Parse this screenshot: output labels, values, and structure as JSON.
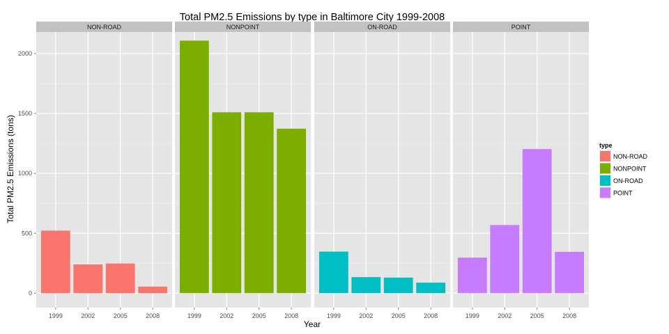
{
  "chart_data": {
    "type": "bar",
    "title": "Total PM2.5 Emissions by type in Baltimore City 1999-2008",
    "xlabel": "Year",
    "ylabel": "Total PM2.5 Emissions (tons)",
    "ylim": [
      -120,
      2180
    ],
    "yticks": [
      0,
      500,
      1000,
      1500,
      2000
    ],
    "categories": [
      "1999",
      "2002",
      "2005",
      "2008"
    ],
    "grid": true,
    "legend": {
      "title": "type",
      "position": "right",
      "entries": [
        "NON-ROAD",
        "NONPOINT",
        "ON-ROAD",
        "POINT"
      ]
    },
    "series": [
      {
        "name": "NON-ROAD",
        "color": "#F8766D",
        "values": [
          522,
          240,
          248,
          55
        ]
      },
      {
        "name": "NONPOINT",
        "color": "#7CAE00",
        "values": [
          2108,
          1510,
          1510,
          1373
        ]
      },
      {
        "name": "ON-ROAD",
        "color": "#00BFC4",
        "values": [
          347,
          134,
          130,
          88
        ]
      },
      {
        "name": "POINT",
        "color": "#C77CFF",
        "values": [
          297,
          569,
          1203,
          345
        ]
      }
    ]
  }
}
